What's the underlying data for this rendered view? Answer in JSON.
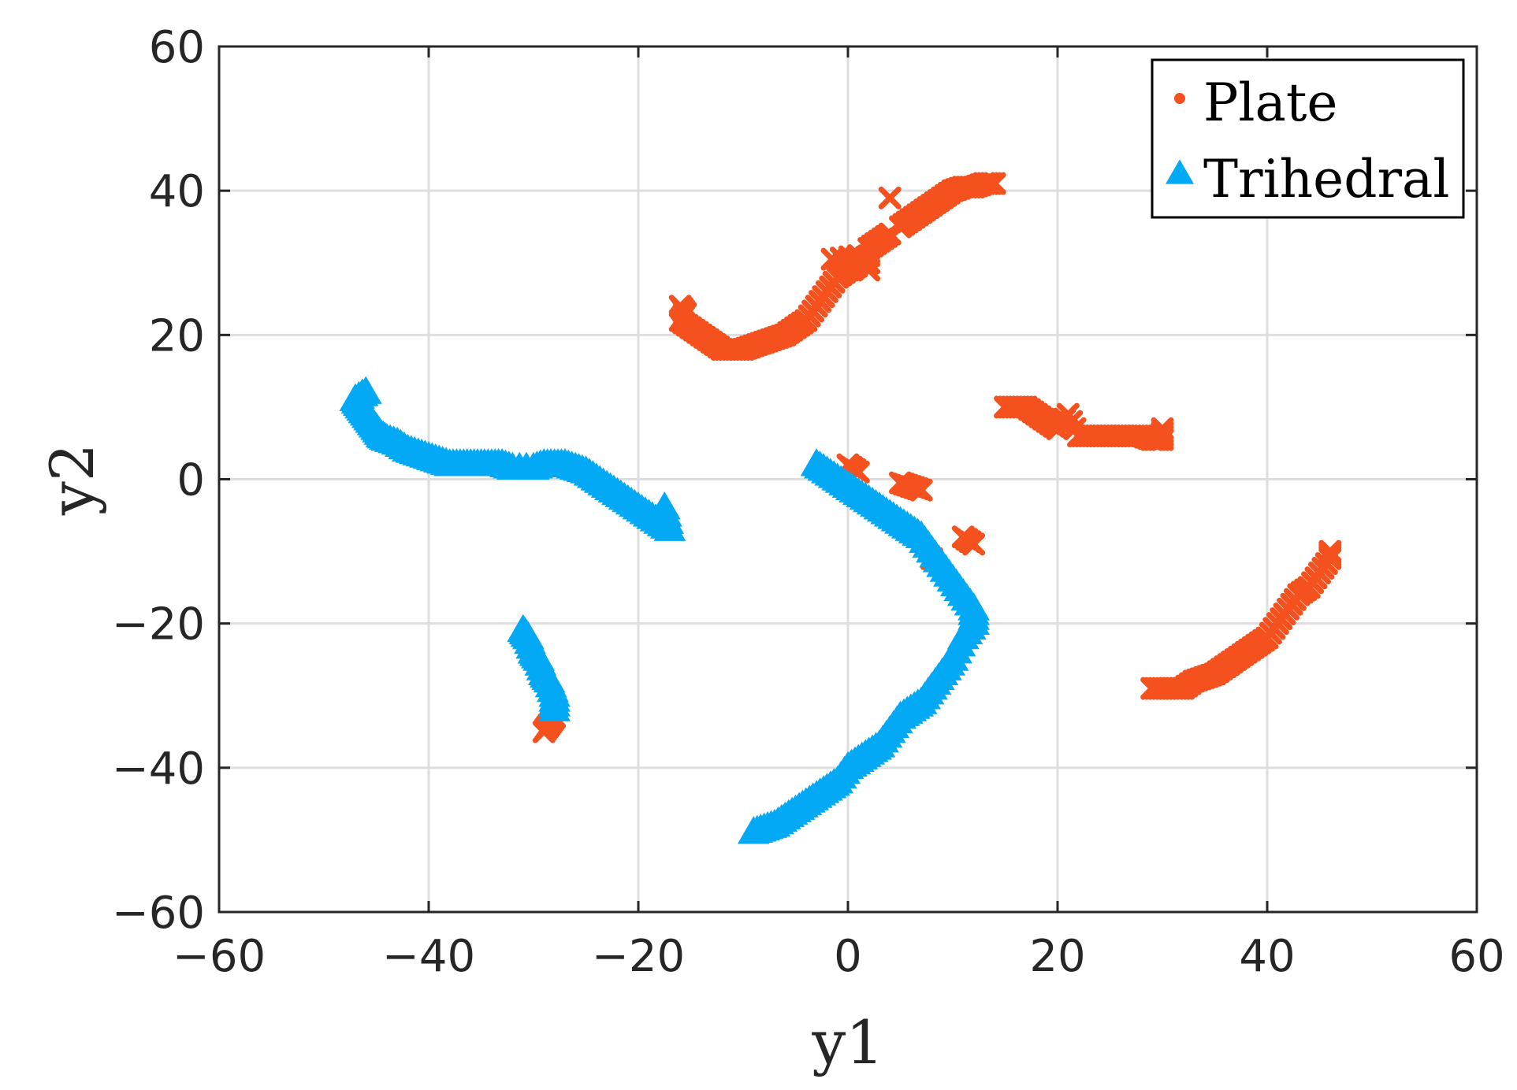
{
  "chart_data": {
    "type": "scatter",
    "xlabel": "y1",
    "ylabel": "y2",
    "xlim": [
      -60,
      60
    ],
    "ylim": [
      -60,
      60
    ],
    "xticks": [
      "−60",
      "−40",
      "−20",
      "0",
      "20",
      "40",
      "60"
    ],
    "yticks": [
      "60",
      "40",
      "20",
      "0",
      "−20",
      "−40",
      "−60"
    ],
    "grid": true,
    "legend_position": "top-right",
    "series": [
      {
        "name": "Plate",
        "marker": "x",
        "color": "#F4511E",
        "points": [
          [
            -16,
            24
          ],
          [
            -15.5,
            23
          ],
          [
            -16,
            22
          ],
          [
            -15,
            21
          ],
          [
            -14,
            20
          ],
          [
            -13,
            19
          ],
          [
            -12,
            18
          ],
          [
            -11,
            18
          ],
          [
            -10,
            18
          ],
          [
            -9,
            18.5
          ],
          [
            -8,
            19
          ],
          [
            -7,
            19.5
          ],
          [
            -6,
            20
          ],
          [
            -5,
            21
          ],
          [
            -4,
            22
          ],
          [
            -3,
            24
          ],
          [
            -2,
            26
          ],
          [
            -1,
            28
          ],
          [
            0,
            29
          ],
          [
            0.5,
            30
          ],
          [
            1,
            31
          ],
          [
            -1.5,
            30.5
          ],
          [
            2,
            29
          ],
          [
            2,
            32
          ],
          [
            3,
            33
          ],
          [
            4,
            34
          ],
          [
            4,
            39
          ],
          [
            5,
            35
          ],
          [
            6,
            36
          ],
          [
            7,
            37
          ],
          [
            8,
            38
          ],
          [
            9,
            39
          ],
          [
            10,
            40
          ],
          [
            11,
            40.5
          ],
          [
            12,
            40.5
          ],
          [
            13,
            41
          ],
          [
            14,
            41
          ],
          [
            15,
            10
          ],
          [
            16,
            10
          ],
          [
            17,
            10
          ],
          [
            18,
            9
          ],
          [
            19,
            8
          ],
          [
            20,
            7
          ],
          [
            21,
            9
          ],
          [
            22,
            6
          ],
          [
            23,
            6
          ],
          [
            24,
            6
          ],
          [
            25,
            6
          ],
          [
            26,
            6
          ],
          [
            27,
            6
          ],
          [
            28,
            6
          ],
          [
            29,
            5.5
          ],
          [
            30,
            5.5
          ],
          [
            30,
            7
          ],
          [
            0,
            2
          ],
          [
            1,
            1
          ],
          [
            5,
            -0.5
          ],
          [
            6,
            -1
          ],
          [
            7,
            -1.5
          ],
          [
            11,
            -8
          ],
          [
            12,
            -9
          ],
          [
            8,
            -11
          ],
          [
            29,
            -29
          ],
          [
            30,
            -29
          ],
          [
            31,
            -29
          ],
          [
            32,
            -29
          ],
          [
            33,
            -28
          ],
          [
            34,
            -27.5
          ],
          [
            35,
            -27
          ],
          [
            36,
            -26
          ],
          [
            37,
            -25
          ],
          [
            38,
            -24
          ],
          [
            39,
            -23
          ],
          [
            40,
            -22
          ],
          [
            41,
            -20
          ],
          [
            42,
            -18
          ],
          [
            43,
            -16
          ],
          [
            44,
            -15
          ],
          [
            45,
            -13
          ],
          [
            46,
            -11
          ],
          [
            46,
            -10
          ],
          [
            -28,
            -33
          ],
          [
            -28.5,
            -34
          ],
          [
            -29,
            -35
          ]
        ]
      },
      {
        "name": "Trihedral",
        "marker": "triangle",
        "color": "#03A9F4",
        "points": [
          [
            -46,
            12
          ],
          [
            -47,
            11
          ],
          [
            -46.5,
            10
          ],
          [
            -46,
            9
          ],
          [
            -45.5,
            8
          ],
          [
            -45,
            7
          ],
          [
            -44.5,
            6
          ],
          [
            -44,
            5.5
          ],
          [
            -43,
            5
          ],
          [
            -42,
            4
          ],
          [
            -41,
            3.5
          ],
          [
            -40,
            3
          ],
          [
            -39,
            2.5
          ],
          [
            -38,
            2
          ],
          [
            -37,
            2
          ],
          [
            -36,
            2
          ],
          [
            -35,
            2
          ],
          [
            -34,
            2
          ],
          [
            -33,
            2
          ],
          [
            -32,
            1.5
          ],
          [
            -30,
            1.5
          ],
          [
            -29,
            2
          ],
          [
            -28,
            2
          ],
          [
            -27,
            2
          ],
          [
            -26,
            1.5
          ],
          [
            -25,
            1
          ],
          [
            -24,
            0
          ],
          [
            -23,
            -1
          ],
          [
            -22,
            -2
          ],
          [
            -21,
            -3
          ],
          [
            -20,
            -4
          ],
          [
            -19,
            -5
          ],
          [
            -18,
            -6
          ],
          [
            -17,
            -7
          ],
          [
            -17.5,
            -4
          ],
          [
            -3,
            2
          ],
          [
            -2,
            1
          ],
          [
            -1,
            0
          ],
          [
            0,
            -1
          ],
          [
            1,
            -2
          ],
          [
            2,
            -3
          ],
          [
            3,
            -4
          ],
          [
            4,
            -5
          ],
          [
            5,
            -6
          ],
          [
            6,
            -7
          ],
          [
            7,
            -8
          ],
          [
            8,
            -10
          ],
          [
            9,
            -12
          ],
          [
            10,
            -14
          ],
          [
            11,
            -16
          ],
          [
            12,
            -18
          ],
          [
            12,
            -20
          ],
          [
            11,
            -22
          ],
          [
            10,
            -25
          ],
          [
            9,
            -27
          ],
          [
            8,
            -29
          ],
          [
            7,
            -31
          ],
          [
            6,
            -32
          ],
          [
            5,
            -33
          ],
          [
            4,
            -35
          ],
          [
            3,
            -37
          ],
          [
            2,
            -38
          ],
          [
            1,
            -39
          ],
          [
            0,
            -40
          ],
          [
            -1,
            -42
          ],
          [
            -2,
            -43
          ],
          [
            -3,
            -44
          ],
          [
            -4,
            -45
          ],
          [
            -5,
            -46
          ],
          [
            -6,
            -47
          ],
          [
            -7,
            -48
          ],
          [
            -8,
            -48.5
          ],
          [
            -9,
            -49
          ],
          [
            -31,
            -21
          ],
          [
            -30.5,
            -22
          ],
          [
            -30,
            -24
          ],
          [
            -29.5,
            -25
          ],
          [
            -29,
            -27
          ],
          [
            -28.5,
            -28
          ],
          [
            -28,
            -30
          ],
          [
            -28,
            -32
          ]
        ]
      }
    ]
  }
}
